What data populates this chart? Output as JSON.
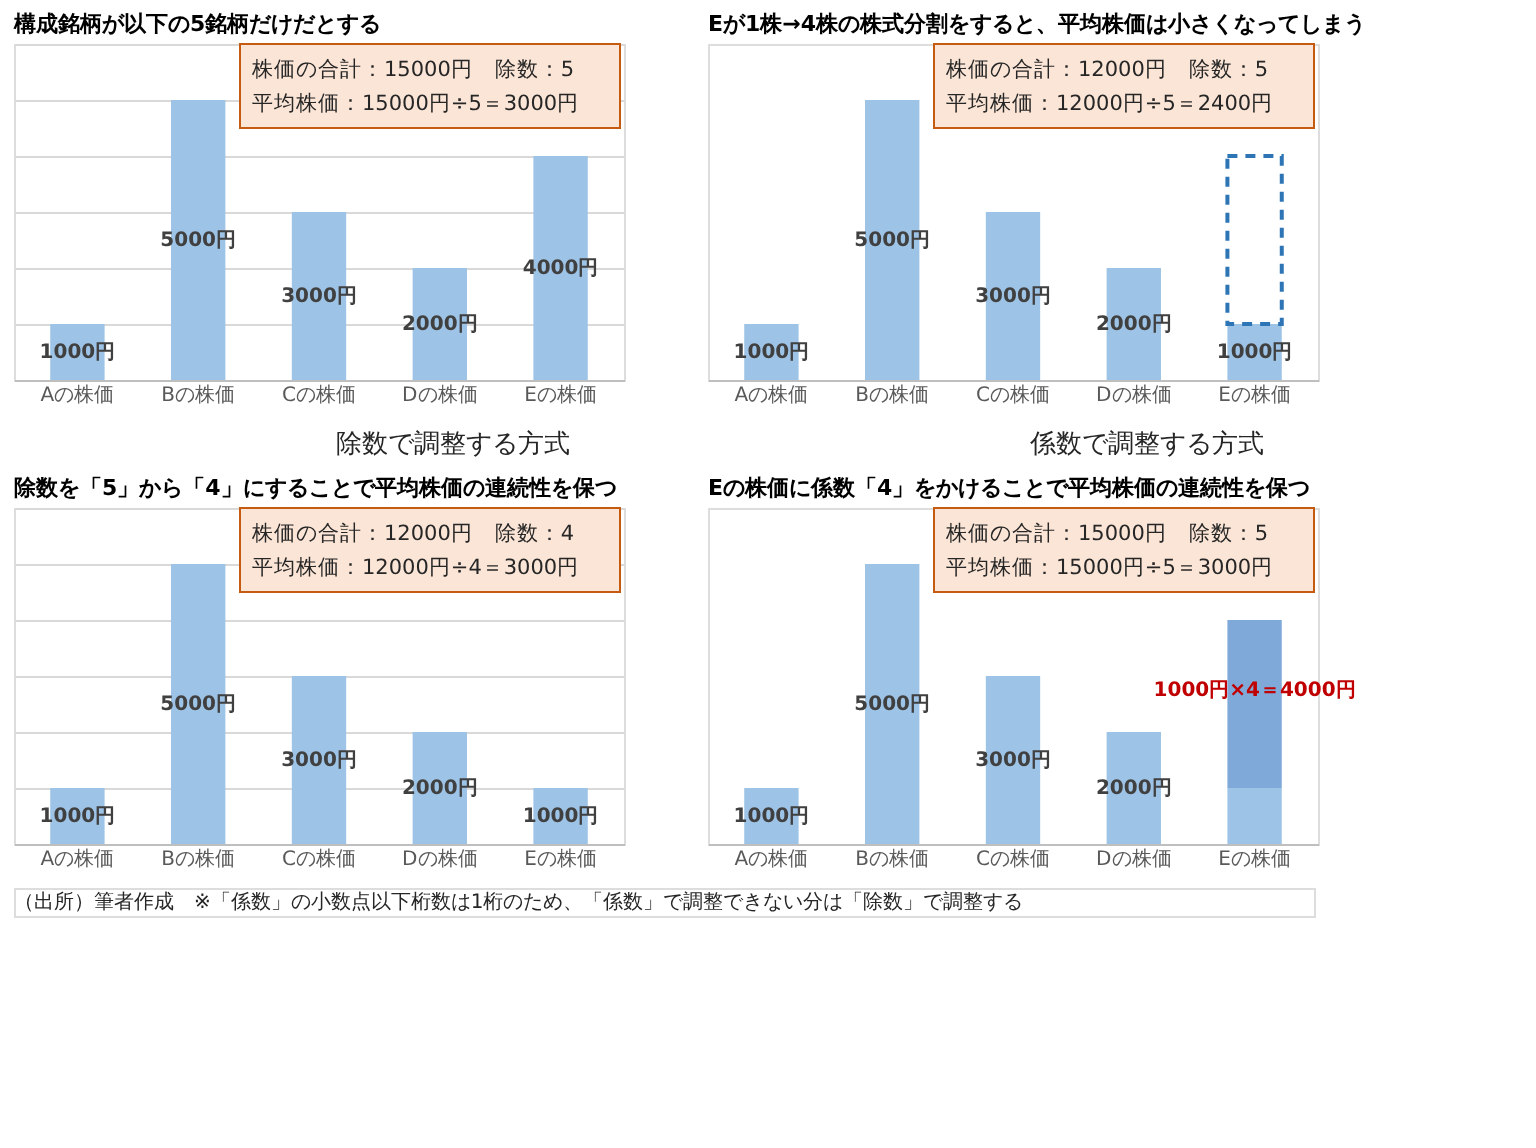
{
  "chart_data": [
    {
      "type": "bar",
      "title": "構成銘柄が以下の5銘柄だけだとする",
      "categories": [
        "Aの株価",
        "Bの株価",
        "Cの株価",
        "Dの株価",
        "Eの株価"
      ],
      "series": [
        {
          "color": "#9dc3e6",
          "values": [
            1000,
            5000,
            3000,
            2000,
            4000
          ],
          "value_labels": [
            "1000円",
            "5000円",
            "3000円",
            "2000円",
            "4000円"
          ]
        }
      ],
      "ylim": [
        0,
        6000
      ],
      "grid": true,
      "tick_labels": "x",
      "annotations": [
        "株価の合計：15000円　除数：5",
        "平均株価：15000円÷5＝3000円",
        "除数で調整する方式"
      ]
    },
    {
      "type": "bar",
      "title": "Eが1株→4株の株式分割をすると、平均株価は小さくなってしまう",
      "categories": [
        "Aの株価",
        "Bの株価",
        "Cの株価",
        "Dの株価",
        "Eの株価"
      ],
      "stacked": true,
      "series": [
        {
          "color": "#9dc3e6",
          "values": [
            1000,
            5000,
            3000,
            2000,
            1000
          ],
          "value_labels": [
            "1000円",
            "5000円",
            "3000円",
            "2000円",
            "1000円"
          ]
        },
        {
          "color": "#2e75b6",
          "values": [
            null,
            null,
            null,
            null,
            3000
          ],
          "line_style": "dashed"
        }
      ],
      "ylim": [
        0,
        6000
      ],
      "grid": true,
      "tick_labels": "x",
      "annotations": [
        "株価の合計：12000円　除数：5",
        "平均株価：12000円÷5＝2400円",
        "係数で調整する方式"
      ]
    },
    {
      "type": "bar",
      "title": "除数を「5」から「4」にすることで平均株価の連続性を保つ",
      "categories": [
        "Aの株価",
        "Bの株価",
        "Cの株価",
        "Dの株価",
        "Eの株価"
      ],
      "series": [
        {
          "color": "#9dc3e6",
          "values": [
            1000,
            5000,
            3000,
            2000,
            1000
          ],
          "value_labels": [
            "1000円",
            "5000円",
            "3000円",
            "2000円",
            "1000円"
          ]
        }
      ],
      "ylim": [
        0,
        6000
      ],
      "grid": true,
      "tick_labels": "x",
      "annotations": [
        "株価の合計：12000円　除数：4",
        "平均株価：12000円÷4＝3000円",
        "（出所）筆者作成　※「係数」の小数点以下桁数は1桁のため、「係数」で調整できない分は「除数」で調整する"
      ]
    },
    {
      "type": "bar",
      "title": "Eの株価に係数「4」をかけることで平均株価の連続性を保つ",
      "categories": [
        "Aの株価",
        "Bの株価",
        "Cの株価",
        "Dの株価",
        "Eの株価"
      ],
      "stacked": true,
      "series": [
        {
          "color": "#9dc3e6",
          "values": [
            1000,
            5000,
            3000,
            2000,
            1000
          ],
          "value_labels": [
            "1000円",
            "5000円",
            "3000円",
            "2000円",
            null
          ]
        },
        {
          "color": "#7fa9d8",
          "values": [
            null,
            null,
            null,
            null,
            3000
          ]
        }
      ],
      "ylim": [
        0,
        6000
      ],
      "grid": true,
      "tick_labels": "x",
      "annotations": [
        "株価の合計：15000円　除数：5",
        "平均株価：15000円÷5＝3000円",
        {
          "text": "1000円×4＝4000円",
          "x": "Eの株価",
          "y": 4000
        }
      ]
    }
  ]
}
